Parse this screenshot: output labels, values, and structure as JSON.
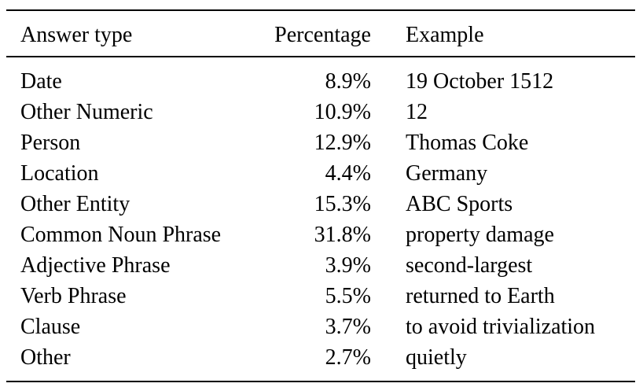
{
  "table": {
    "headers": {
      "answer_type": "Answer type",
      "percentage": "Percentage",
      "example": "Example"
    },
    "rows": [
      {
        "answer_type": "Date",
        "percentage": "8.9%",
        "example": "19 October 1512"
      },
      {
        "answer_type": "Other Numeric",
        "percentage": "10.9%",
        "example": "12"
      },
      {
        "answer_type": "Person",
        "percentage": "12.9%",
        "example": "Thomas Coke"
      },
      {
        "answer_type": "Location",
        "percentage": "4.4%",
        "example": "Germany"
      },
      {
        "answer_type": "Other Entity",
        "percentage": "15.3%",
        "example": "ABC Sports"
      },
      {
        "answer_type": "Common Noun Phrase",
        "percentage": "31.8%",
        "example": "property damage"
      },
      {
        "answer_type": "Adjective Phrase",
        "percentage": "3.9%",
        "example": "second-largest"
      },
      {
        "answer_type": "Verb Phrase",
        "percentage": "5.5%",
        "example": "returned to Earth"
      },
      {
        "answer_type": "Clause",
        "percentage": "3.7%",
        "example": "to avoid trivialization"
      },
      {
        "answer_type": "Other",
        "percentage": "2.7%",
        "example": "quietly"
      }
    ]
  }
}
